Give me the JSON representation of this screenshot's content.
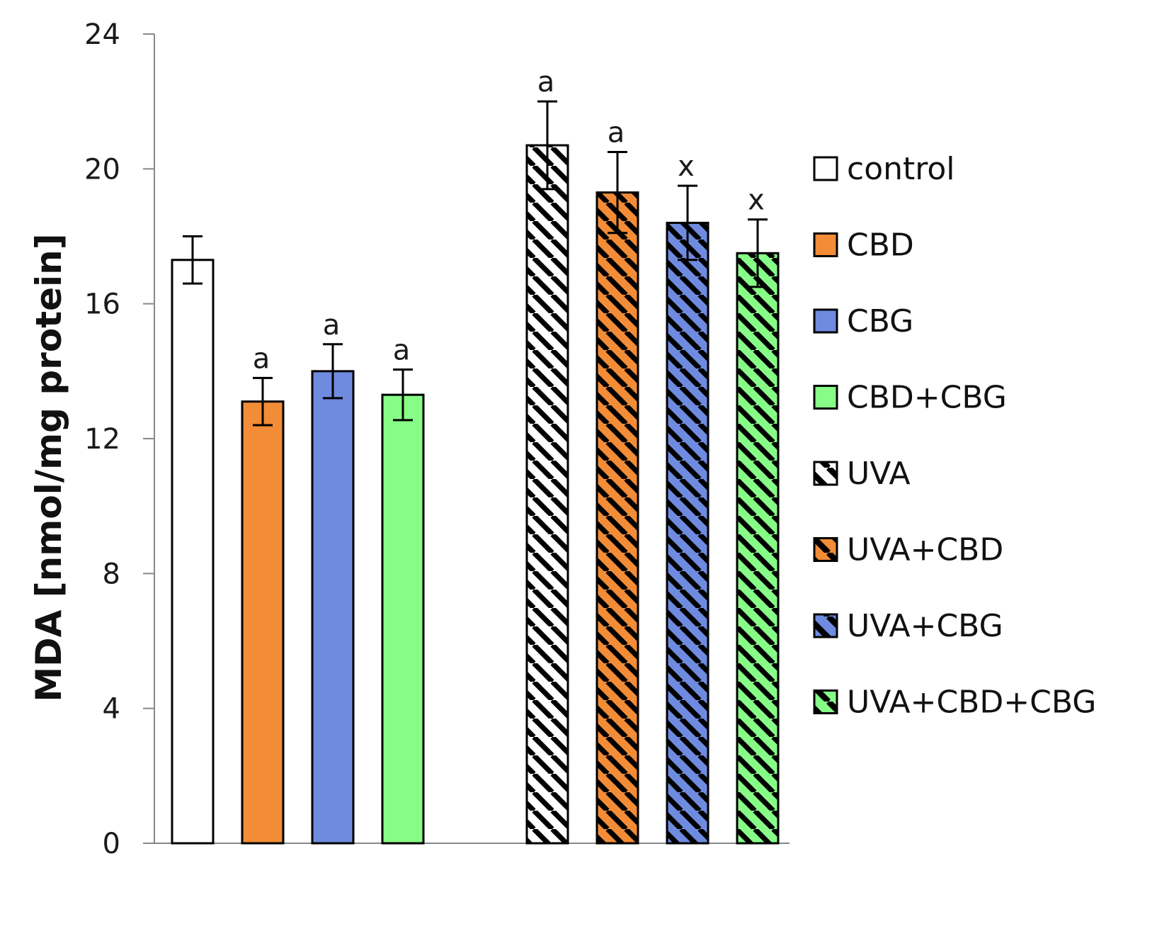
{
  "chart_data": {
    "type": "bar",
    "title": "",
    "xlabel": "",
    "ylabel": "MDA [nmol/mg protein]",
    "ylim": [
      0,
      24
    ],
    "yticks": [
      0,
      4,
      8,
      12,
      16,
      20,
      24
    ],
    "grid": false,
    "legend_position": "right",
    "series": [
      {
        "name": "control",
        "value": 17.3,
        "error": 0.7,
        "label": "",
        "color": "#ffffff",
        "hatched": false
      },
      {
        "name": "CBD",
        "value": 13.1,
        "error": 0.7,
        "label": "a",
        "color": "#f28c37",
        "hatched": false
      },
      {
        "name": "CBG",
        "value": 14.0,
        "error": 0.8,
        "label": "a",
        "color": "#6f8be0",
        "hatched": false
      },
      {
        "name": "CBD+CBG",
        "value": 13.3,
        "error": 0.75,
        "label": "a",
        "color": "#87fd87",
        "hatched": false
      },
      {
        "name": "UVA",
        "value": 20.7,
        "error": 1.3,
        "label": "a",
        "color": "#ffffff",
        "hatched": true
      },
      {
        "name": "UVA+CBD",
        "value": 19.3,
        "error": 1.2,
        "label": "a",
        "color": "#f28c37",
        "hatched": true
      },
      {
        "name": "UVA+CBG",
        "value": 18.4,
        "error": 1.1,
        "label": "x",
        "color": "#6f8be0",
        "hatched": true
      },
      {
        "name": "UVA+CBD+CBG",
        "value": 17.5,
        "error": 1.0,
        "label": "x",
        "color": "#87fd87",
        "hatched": true
      }
    ]
  }
}
